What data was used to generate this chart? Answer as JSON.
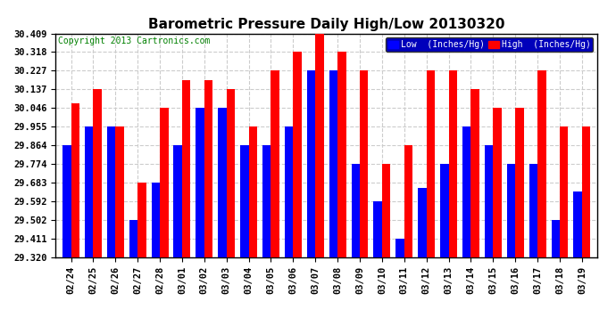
{
  "title": "Barometric Pressure Daily High/Low 20130320",
  "copyright": "Copyright 2013 Cartronics.com",
  "background_color": "#ffffff",
  "plot_background": "#ffffff",
  "dates": [
    "02/24",
    "02/25",
    "02/26",
    "02/27",
    "02/28",
    "03/01",
    "03/02",
    "03/03",
    "03/04",
    "03/05",
    "03/06",
    "03/07",
    "03/08",
    "03/09",
    "03/10",
    "03/11",
    "03/12",
    "03/13",
    "03/14",
    "03/15",
    "03/16",
    "03/17",
    "03/18",
    "03/19"
  ],
  "high": [
    30.068,
    30.137,
    29.955,
    29.683,
    30.046,
    30.182,
    30.182,
    30.137,
    29.955,
    30.227,
    30.318,
    30.409,
    30.318,
    30.227,
    29.774,
    29.864,
    30.227,
    30.227,
    30.137,
    30.046,
    30.046,
    30.227,
    29.955,
    29.955
  ],
  "low": [
    29.864,
    29.955,
    29.955,
    29.502,
    29.683,
    29.864,
    30.046,
    30.046,
    29.864,
    29.864,
    29.955,
    30.227,
    30.227,
    29.774,
    29.592,
    29.411,
    29.655,
    29.774,
    29.955,
    29.864,
    29.774,
    29.774,
    29.502,
    29.638
  ],
  "high_color": "#ff0000",
  "low_color": "#0000ff",
  "ylim_min": 29.32,
  "ylim_max": 30.409,
  "yticks": [
    29.32,
    29.411,
    29.502,
    29.592,
    29.683,
    29.774,
    29.864,
    29.955,
    30.046,
    30.137,
    30.227,
    30.318,
    30.409
  ],
  "grid_color": "#cccccc",
  "title_fontsize": 11,
  "tick_fontsize": 7.5,
  "copyright_fontsize": 7,
  "legend_fontsize": 7
}
